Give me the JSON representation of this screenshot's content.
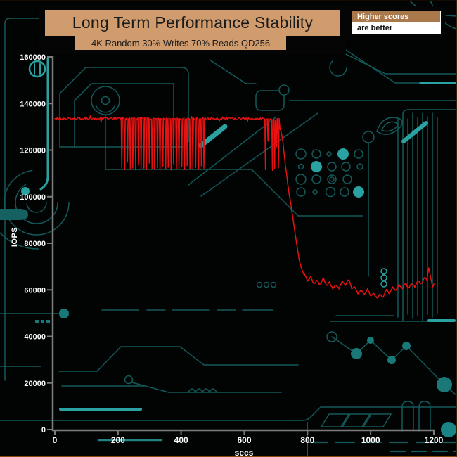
{
  "header": {
    "title": "Long Term Performance Stability",
    "subtitle": "4K Random 30% Writes 70% Reads QD256",
    "banner_color": "#d09b6d"
  },
  "legend": {
    "line1": "Higher scores",
    "line2": "are better",
    "line1_bg": "#a9784b",
    "line2_bg": "#ffffff"
  },
  "background": {
    "board_color": "#020303",
    "trace_color": "#145a5a",
    "trace_bright": "#2aa2a2",
    "bottom_border_color": "#8a4a10"
  },
  "chart_data": {
    "type": "line",
    "title": "Long Term Performance Stability",
    "subtitle": "4K Random 30% Writes 70% Reads QD256",
    "xlabel": "secs",
    "ylabel": "IOPS",
    "xlim": [
      0,
      1200
    ],
    "ylim": [
      0,
      160000
    ],
    "x_ticks": [
      0,
      200,
      400,
      600,
      800,
      1000,
      1200
    ],
    "y_ticks": [
      0,
      20000,
      40000,
      60000,
      80000,
      100000,
      120000,
      140000,
      160000
    ],
    "grid": false,
    "axis_color": "#7c7c7c",
    "tick_label_color": "#ffffff",
    "series": [
      {
        "name": "4K Random 30% Writes 70% Reads QD256",
        "color": "#e81212",
        "segments": [
          {
            "type": "flat",
            "from": 0,
            "to": 210,
            "value": 133500,
            "noise": 1000
          },
          {
            "type": "flat_with_dips",
            "from": 210,
            "to": 478,
            "value": 133600,
            "noise": 1000,
            "dips": [
              [
                212,
                112400
              ],
              [
                221,
                111600
              ],
              [
                230,
                114800
              ],
              [
                239,
                111800
              ],
              [
                247,
                112300
              ],
              [
                256,
                111500
              ],
              [
                265,
                113600
              ],
              [
                273,
                111900
              ],
              [
                282,
                112200
              ],
              [
                290,
                111600
              ],
              [
                299,
                114400
              ],
              [
                308,
                112000
              ],
              [
                316,
                111700
              ],
              [
                325,
                112500
              ],
              [
                333,
                111500
              ],
              [
                342,
                113100
              ],
              [
                351,
                111800
              ],
              [
                359,
                112600
              ],
              [
                368,
                111500
              ],
              [
                376,
                114100
              ],
              [
                385,
                112100
              ],
              [
                393,
                111700
              ],
              [
                402,
                112900
              ],
              [
                411,
                111600
              ],
              [
                419,
                113300
              ],
              [
                428,
                112000
              ],
              [
                437,
                111800
              ],
              [
                446,
                112500
              ],
              [
                455,
                111700
              ],
              [
                464,
                113200
              ],
              [
                472,
                112200
              ]
            ]
          },
          {
            "type": "flat",
            "from": 478,
            "to": 663,
            "value": 133500,
            "noise": 900
          },
          {
            "type": "flat_with_dips",
            "from": 663,
            "to": 712,
            "value": 133200,
            "noise": 1000,
            "dips": [
              [
                667,
                111600
              ],
              [
                675,
                123800
              ],
              [
                689,
                111300
              ],
              [
                696,
                111900
              ],
              [
                702,
                121400
              ],
              [
                708,
                112400
              ]
            ]
          },
          {
            "type": "anchors",
            "noise": 900,
            "points": [
              [
                713,
                129500
              ],
              [
                719,
                126500
              ],
              [
                725,
                120000
              ],
              [
                731,
                112500
              ],
              [
                737,
                106000
              ],
              [
                743,
                100500
              ],
              [
                749,
                95500
              ],
              [
                755,
                90000
              ],
              [
                761,
                84000
              ],
              [
                767,
                78500
              ],
              [
                773,
                73500
              ],
              [
                779,
                70000
              ],
              [
                785,
                67500
              ],
              [
                790,
                66300
              ]
            ]
          },
          {
            "type": "anchors_osc",
            "noise": 700,
            "osc_amp": 1900,
            "osc_period": 20,
            "points": [
              [
                790,
                65800
              ],
              [
                810,
                64300
              ],
              [
                830,
                62800
              ],
              [
                850,
                63800
              ],
              [
                870,
                62200
              ],
              [
                890,
                61000
              ],
              [
                910,
                62400
              ],
              [
                930,
                63400
              ],
              [
                950,
                60200
              ],
              [
                970,
                58600
              ],
              [
                990,
                59400
              ],
              [
                1010,
                57600
              ],
              [
                1030,
                57200
              ],
              [
                1050,
                58800
              ],
              [
                1070,
                60000
              ],
              [
                1090,
                61200
              ],
              [
                1110,
                62000
              ],
              [
                1130,
                61600
              ],
              [
                1150,
                62800
              ],
              [
                1165,
                63800
              ],
              [
                1178,
                65000
              ],
              [
                1184,
                69800
              ],
              [
                1190,
                64200
              ],
              [
                1196,
                61600
              ],
              [
                1200,
                62600
              ]
            ]
          }
        ]
      }
    ]
  }
}
